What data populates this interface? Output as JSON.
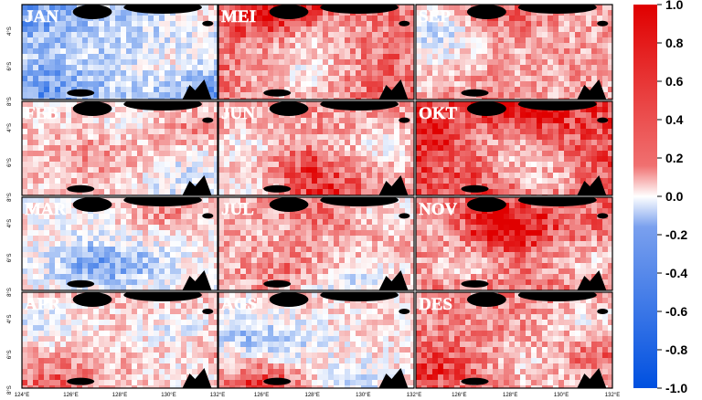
{
  "figure": {
    "panels": [
      {
        "label": "JAN",
        "bias": -0.25
      },
      {
        "label": "MEI",
        "bias": 0.55
      },
      {
        "label": "SEP",
        "bias": 0.35
      },
      {
        "label": "FEB",
        "bias": 0.2
      },
      {
        "label": "JUN",
        "bias": 0.4
      },
      {
        "label": "OKT",
        "bias": 0.7
      },
      {
        "label": "MAR",
        "bias": 0.05
      },
      {
        "label": "JUL",
        "bias": 0.3
      },
      {
        "label": "NOV",
        "bias": 0.55
      },
      {
        "label": "APR",
        "bias": 0.25
      },
      {
        "label": "AGS",
        "bias": 0.15
      },
      {
        "label": "DES",
        "bias": 0.45
      }
    ],
    "lat_ticks": [
      "4°S",
      "6°S",
      "8°S"
    ],
    "lon_ticks_left": [
      "124°E",
      "126°E",
      "128°E",
      "130°E",
      "132°E"
    ],
    "lon_ticks_mid": [
      "126°E",
      "128°E",
      "130°E",
      "132°E"
    ],
    "lon_ticks_right": [
      "126°E",
      "128°E",
      "130°E",
      "132°E"
    ],
    "colorbar": {
      "labels": [
        "1.0",
        "0.8",
        "0.6",
        "0.4",
        "0.2",
        "0.0",
        "-0.2",
        "-0.4",
        "-0.6",
        "-0.8",
        "-1.0"
      ],
      "max": 1.0,
      "min": -1.0
    },
    "colors": {
      "positive": "#e00000",
      "neutral": "#ffffff",
      "negative": "#0050e0",
      "land": "#000000"
    }
  }
}
